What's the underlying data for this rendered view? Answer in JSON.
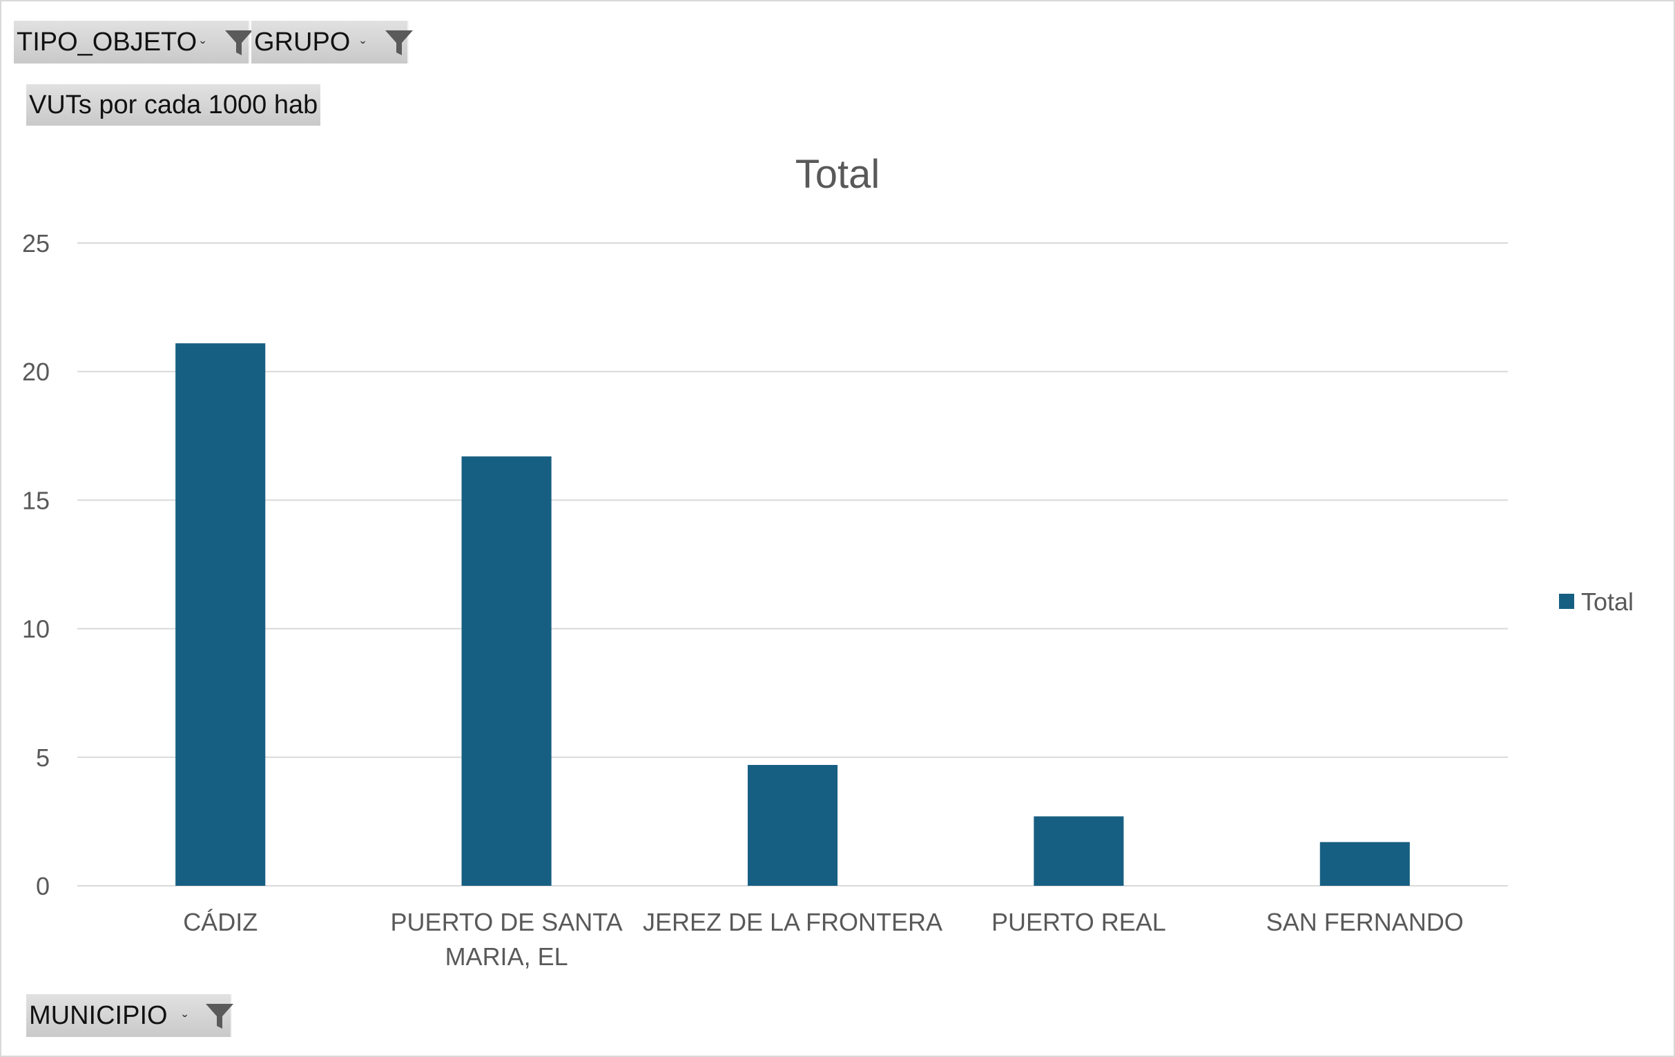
{
  "filters": {
    "tipo_objeto": "TIPO_OBJETO",
    "grupo": "GRUPO",
    "municipio": "MUNICIPIO"
  },
  "values_button": "VUTs por cada 1000 hab",
  "icons": {
    "filter": "funnel-filter-icon",
    "dropdown": "dropdown-caret-icon"
  },
  "colors": {
    "bar": "#175f82",
    "grid": "#d9d9d9",
    "text": "#595959"
  },
  "chart_data": {
    "type": "bar",
    "title": "Total",
    "categories": [
      [
        "CÁDIZ"
      ],
      [
        "PUERTO DE SANTA",
        "MARIA, EL"
      ],
      [
        "JEREZ DE LA FRONTERA"
      ],
      [
        "PUERTO REAL"
      ],
      [
        "SAN FERNANDO"
      ]
    ],
    "series": [
      {
        "name": "Total",
        "values": [
          21.1,
          16.7,
          4.7,
          2.7,
          1.7
        ]
      }
    ],
    "ylim": [
      0,
      25
    ],
    "yticks": [
      0,
      5,
      10,
      15,
      20,
      25
    ],
    "grid": true,
    "legend": "right"
  }
}
